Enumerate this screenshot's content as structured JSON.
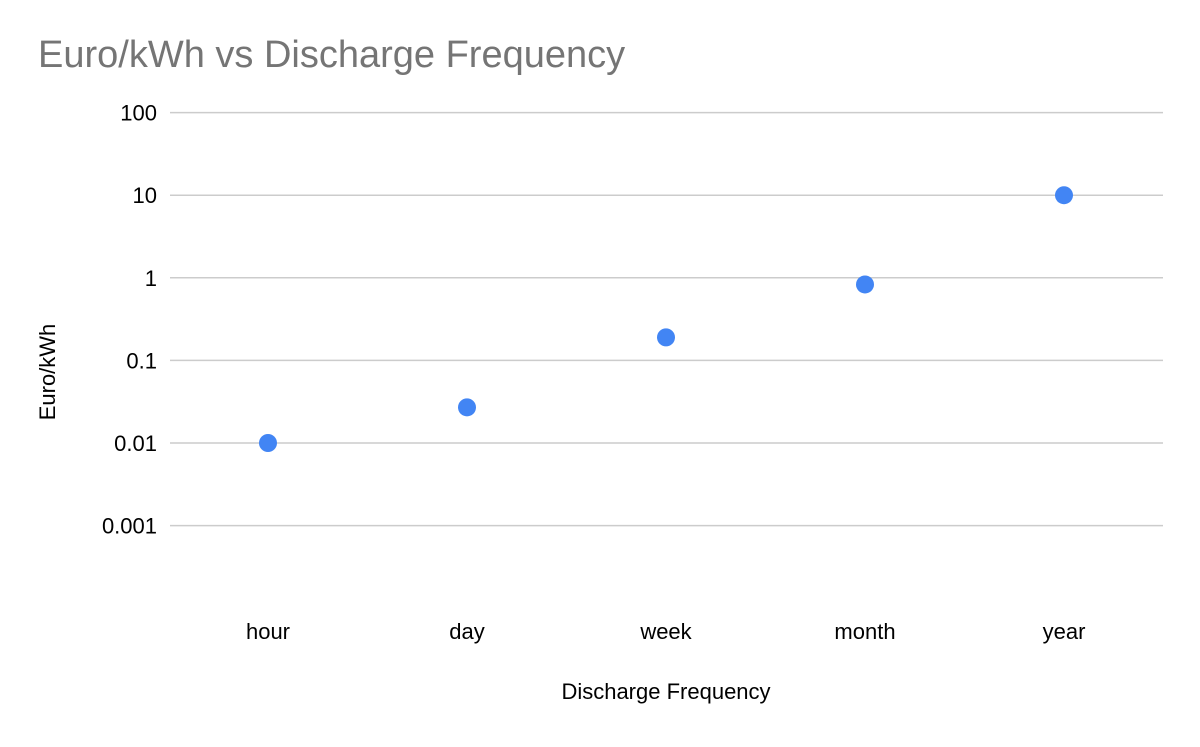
{
  "chart_data": {
    "type": "scatter",
    "title": "Euro/kWh vs Discharge Frequency",
    "xlabel": "Discharge Frequency",
    "ylabel": "Euro/kWh",
    "y_scale": "log",
    "ylim": [
      0.0005,
      100
    ],
    "y_ticks": [
      {
        "value": 100,
        "label": "100"
      },
      {
        "value": 10,
        "label": "10"
      },
      {
        "value": 1,
        "label": "1"
      },
      {
        "value": 0.1,
        "label": "0.1"
      },
      {
        "value": 0.01,
        "label": "0.01"
      },
      {
        "value": 0.001,
        "label": "0.001"
      }
    ],
    "categories": [
      "hour",
      "day",
      "week",
      "month",
      "year"
    ],
    "series": [
      {
        "values": [
          0.01,
          0.027,
          0.19,
          0.83,
          10
        ],
        "color": "#4285f4"
      }
    ],
    "grid": true,
    "legend": "none"
  }
}
